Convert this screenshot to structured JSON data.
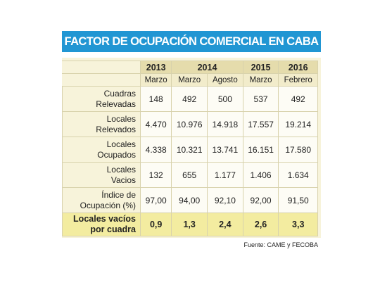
{
  "title": "FACTOR DE OCUPACIÓN COMERCIAL EN CABA",
  "table": {
    "years": [
      "2013",
      "2014",
      "2015",
      "2016"
    ],
    "months": [
      "Marzo",
      "Marzo",
      "Agosto",
      "Marzo",
      "Febrero"
    ],
    "rows": [
      {
        "label": [
          "Cuadras",
          "Relevadas"
        ],
        "values": [
          "148",
          "492",
          "500",
          "537",
          "492"
        ]
      },
      {
        "label": [
          "Locales",
          "Relevados"
        ],
        "values": [
          "4.470",
          "10.976",
          "14.918",
          "17.557",
          "19.214"
        ]
      },
      {
        "label": [
          "Locales",
          "Ocupados"
        ],
        "values": [
          "4.338",
          "10.321",
          "13.741",
          "16.151",
          "17.580"
        ]
      },
      {
        "label": [
          "Locales",
          "Vacios"
        ],
        "values": [
          "132",
          "655",
          "1.177",
          "1.406",
          "1.634"
        ]
      },
      {
        "label": [
          "Índice de",
          "Ocupación (%)"
        ],
        "values": [
          "97,00",
          "94,00",
          "92,10",
          "92,00",
          "91,50"
        ]
      },
      {
        "label": [
          "Locales vacíos",
          "por cuadra"
        ],
        "values": [
          "0,9",
          "1,3",
          "2,4",
          "2,6",
          "3,3"
        ]
      }
    ]
  },
  "source": "Fuente: CAME y FECOBA"
}
